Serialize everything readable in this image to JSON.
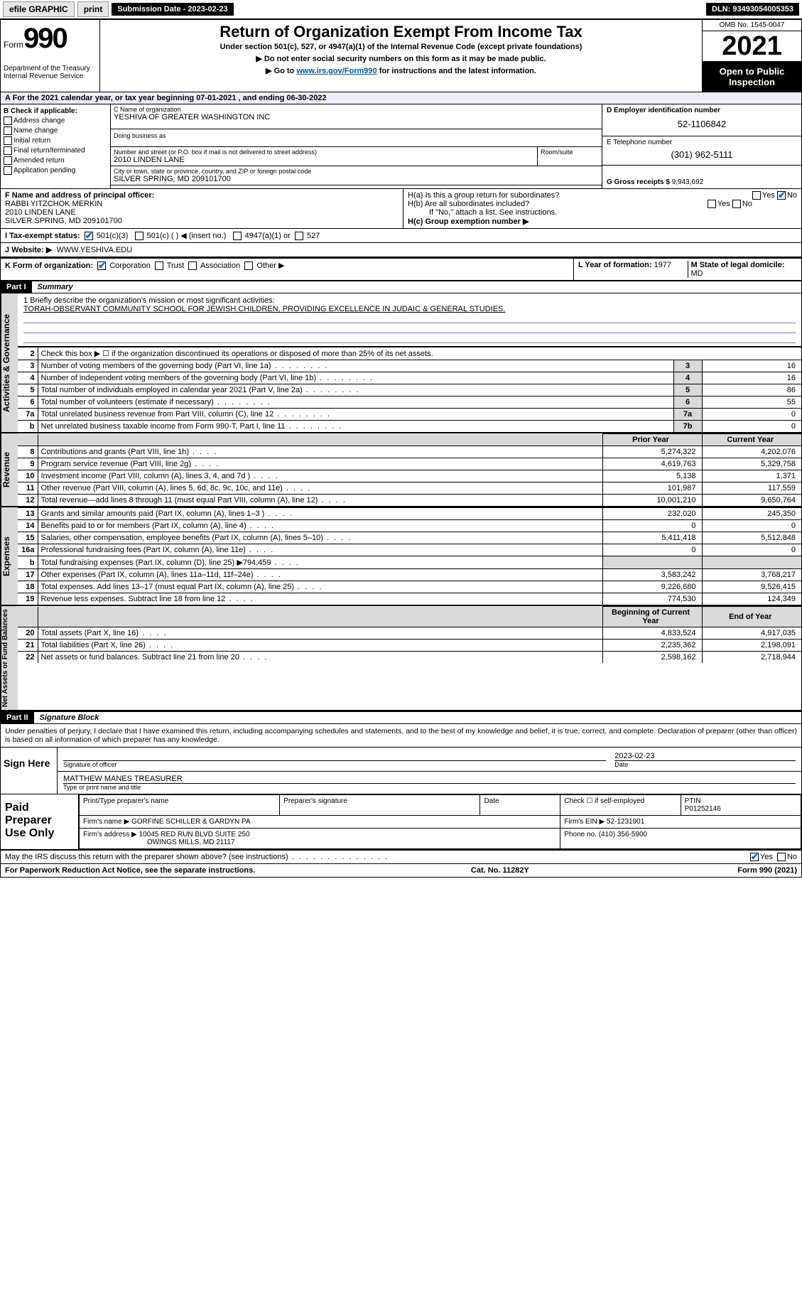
{
  "topbar": {
    "efile": "efile GRAPHIC",
    "print": "print",
    "sub_label": "Submission Date - 2023-02-23",
    "dln": "DLN: 93493054005353"
  },
  "header": {
    "form_word": "Form",
    "form_num": "990",
    "title": "Return of Organization Exempt From Income Tax",
    "subtitle": "Under section 501(c), 527, or 4947(a)(1) of the Internal Revenue Code (except private foundations)",
    "note1": "▶ Do not enter social security numbers on this form as it may be made public.",
    "note2_pre": "▶ Go to ",
    "note2_link": "www.irs.gov/Form990",
    "note2_post": " for instructions and the latest information.",
    "dept": "Department of the Treasury",
    "irs": "Internal Revenue Service",
    "omb": "OMB No. 1545-0047",
    "year": "2021",
    "open": "Open to Public Inspection"
  },
  "rowA": "A For the 2021 calendar year, or tax year beginning 07-01-2021   , and ending 06-30-2022",
  "colB": {
    "title": "B Check if applicable:",
    "opts": [
      "Address change",
      "Name change",
      "Initial return",
      "Final return/terminated",
      "Amended return",
      "Application pending"
    ]
  },
  "colC": {
    "name_lbl": "C Name of organization",
    "name": "YESHIVA OF GREATER WASHINGTON INC",
    "dba_lbl": "Doing business as",
    "addr_lbl": "Number and street (or P.O. box if mail is not delivered to street address)",
    "addr": "2010 LINDEN LANE",
    "room_lbl": "Room/suite",
    "city_lbl": "City or town, state or province, country, and ZIP or foreign postal code",
    "city": "SILVER SPRING, MD  209101700"
  },
  "colD": {
    "ein_lbl": "D Employer identification number",
    "ein": "52-1106842",
    "tel_lbl": "E Telephone number",
    "tel": "(301) 962-5111",
    "gross_lbl": "G Gross receipts $",
    "gross": "9,943,692"
  },
  "rowF": {
    "lbl": "F Name and address of principal officer:",
    "name": "RABBI YITZCHOK MERKIN",
    "addr1": "2010 LINDEN LANE",
    "addr2": "SILVER SPRING, MD  209101700"
  },
  "rowH": {
    "ha": "H(a)  Is this a group return for subordinates?",
    "hb": "H(b)  Are all subordinates included?",
    "hb_note": "If \"No,\" attach a list. See instructions.",
    "hc": "H(c)  Group exemption number ▶"
  },
  "rowI": {
    "lbl": "I   Tax-exempt status:",
    "opts": [
      "501(c)(3)",
      "501(c) (  ) ◀ (insert no.)",
      "4947(a)(1) or",
      "527"
    ]
  },
  "rowJ": {
    "lbl": "J   Website: ▶",
    "val": "WWW.YESHIVA.EDU"
  },
  "rowK": {
    "lbl": "K Form of organization:",
    "opts": [
      "Corporation",
      "Trust",
      "Association",
      "Other ▶"
    ]
  },
  "rowL": {
    "lbl": "L Year of formation:",
    "val": "1977"
  },
  "rowM": {
    "lbl": "M State of legal domicile:",
    "val": "MD"
  },
  "part1": {
    "tag": "Part I",
    "title": "Summary"
  },
  "mission": {
    "q": "1   Briefly describe the organization's mission or most significant activities:",
    "text": "TORAH-OBSERVANT COMMUNITY SCHOOL FOR JEWISH CHILDREN, PROVIDING EXCELLENCE IN JUDAIC & GENERAL STUDIES."
  },
  "gov_rows": [
    {
      "n": "2",
      "desc": "Check this box ▶ ☐  if the organization discontinued its operations or disposed of more than 25% of its net assets.",
      "box": "",
      "v": ""
    },
    {
      "n": "3",
      "desc": "Number of voting members of the governing body (Part VI, line 1a)",
      "box": "3",
      "v": "16"
    },
    {
      "n": "4",
      "desc": "Number of independent voting members of the governing body (Part VI, line 1b)",
      "box": "4",
      "v": "16"
    },
    {
      "n": "5",
      "desc": "Total number of individuals employed in calendar year 2021 (Part V, line 2a)",
      "box": "5",
      "v": "86"
    },
    {
      "n": "6",
      "desc": "Total number of volunteers (estimate if necessary)",
      "box": "6",
      "v": "55"
    },
    {
      "n": "7a",
      "desc": "Total unrelated business revenue from Part VIII, column (C), line 12",
      "box": "7a",
      "v": "0"
    },
    {
      "n": "b",
      "desc": "Net unrelated business taxable income from Form 990-T, Part I, line 11",
      "box": "7b",
      "v": "0"
    }
  ],
  "rev_header": {
    "prior": "Prior Year",
    "curr": "Current Year"
  },
  "rev_rows": [
    {
      "n": "8",
      "desc": "Contributions and grants (Part VIII, line 1h)",
      "p": "5,274,322",
      "c": "4,202,076"
    },
    {
      "n": "9",
      "desc": "Program service revenue (Part VIII, line 2g)",
      "p": "4,619,763",
      "c": "5,329,758"
    },
    {
      "n": "10",
      "desc": "Investment income (Part VIII, column (A), lines 3, 4, and 7d )",
      "p": "5,138",
      "c": "1,371"
    },
    {
      "n": "11",
      "desc": "Other revenue (Part VIII, column (A), lines 5, 6d, 8c, 9c, 10c, and 11e)",
      "p": "101,987",
      "c": "117,559"
    },
    {
      "n": "12",
      "desc": "Total revenue—add lines 8 through 11 (must equal Part VIII, column (A), line 12)",
      "p": "10,001,210",
      "c": "9,650,764"
    }
  ],
  "exp_rows": [
    {
      "n": "13",
      "desc": "Grants and similar amounts paid (Part IX, column (A), lines 1–3 )",
      "p": "232,020",
      "c": "245,350"
    },
    {
      "n": "14",
      "desc": "Benefits paid to or for members (Part IX, column (A), line 4)",
      "p": "0",
      "c": "0"
    },
    {
      "n": "15",
      "desc": "Salaries, other compensation, employee benefits (Part IX, column (A), lines 5–10)",
      "p": "5,411,418",
      "c": "5,512,848"
    },
    {
      "n": "16a",
      "desc": "Professional fundraising fees (Part IX, column (A), line 11e)",
      "p": "0",
      "c": "0"
    },
    {
      "n": "b",
      "desc": "Total fundraising expenses (Part IX, column (D), line 25) ▶794,459",
      "p": "",
      "c": "",
      "shaded": true
    },
    {
      "n": "17",
      "desc": "Other expenses (Part IX, column (A), lines 11a–11d, 11f–24e)",
      "p": "3,583,242",
      "c": "3,768,217"
    },
    {
      "n": "18",
      "desc": "Total expenses. Add lines 13–17 (must equal Part IX, column (A), line 25)",
      "p": "9,226,680",
      "c": "9,526,415"
    },
    {
      "n": "19",
      "desc": "Revenue less expenses. Subtract line 18 from line 12",
      "p": "774,530",
      "c": "124,349"
    }
  ],
  "na_header": {
    "beg": "Beginning of Current Year",
    "end": "End of Year"
  },
  "na_rows": [
    {
      "n": "20",
      "desc": "Total assets (Part X, line 16)",
      "p": "4,833,524",
      "c": "4,917,035"
    },
    {
      "n": "21",
      "desc": "Total liabilities (Part X, line 26)",
      "p": "2,235,362",
      "c": "2,198,091"
    },
    {
      "n": "22",
      "desc": "Net assets or fund balances. Subtract line 21 from line 20",
      "p": "2,598,162",
      "c": "2,718,944"
    }
  ],
  "part2": {
    "tag": "Part II",
    "title": "Signature Block"
  },
  "sig": {
    "decl": "Under penalties of perjury, I declare that I have examined this return, including accompanying schedules and statements, and to the best of my knowledge and belief, it is true, correct, and complete. Declaration of preparer (other than officer) is based on all information of which preparer has any knowledge.",
    "sign_here": "Sign Here",
    "sig_officer": "Signature of officer",
    "date": "2023-02-23",
    "date_lbl": "Date",
    "name": "MATTHEW MANES  TREASURER",
    "name_lbl": "Type or print name and title"
  },
  "prep": {
    "title": "Paid Preparer Use Only",
    "name_lbl": "Print/Type preparer's name",
    "sig_lbl": "Preparer's signature",
    "date_lbl": "Date",
    "check_lbl": "Check ☐ if self-employed",
    "ptin_lbl": "PTIN",
    "ptin": "P01252146",
    "firm_lbl": "Firm's name    ▶",
    "firm": "GORFINE SCHILLER & GARDYN PA",
    "ein_lbl": "Firm's EIN ▶",
    "ein": "52-1231901",
    "addr_lbl": "Firm's address ▶",
    "addr1": "10045 RED RUN BLVD SUITE 250",
    "addr2": "OWINGS MILLS, MD  21117",
    "phone_lbl": "Phone no.",
    "phone": "(410) 356-5900"
  },
  "footer": {
    "q": "May the IRS discuss this return with the preparer shown above? (see instructions)",
    "paperwork": "For Paperwork Reduction Act Notice, see the separate instructions.",
    "cat": "Cat. No. 11282Y",
    "form": "Form 990 (2021)"
  },
  "side_labels": {
    "gov": "Activities & Governance",
    "rev": "Revenue",
    "exp": "Expenses",
    "na": "Net Assets or Fund Balances"
  }
}
